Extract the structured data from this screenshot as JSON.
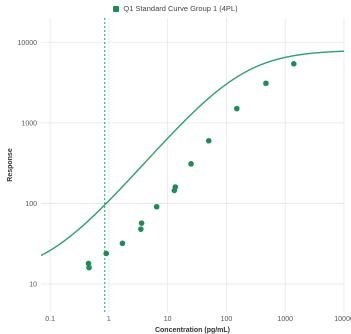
{
  "colors": {
    "series": "#2e9e6e",
    "marker": "#1f8a5a",
    "grid": "#e6e6e6",
    "cutoff": "#2e9e6e"
  },
  "chart_data": {
    "type": "scatter",
    "scale": "log-log",
    "legend_position": "top-center",
    "grid": true,
    "xlabel": "Concentration (pg/mL)",
    "ylabel": "Response",
    "xlim": [
      0.07,
      10000
    ],
    "ylim": [
      4.5,
      20000
    ],
    "x_ticks": [
      0.1,
      1,
      10,
      100,
      1000,
      10000
    ],
    "x_tick_labels": [
      "0.1",
      "1",
      "10",
      "100",
      "1000",
      "10000"
    ],
    "y_ticks": [
      10,
      100,
      1000,
      10000
    ],
    "y_tick_labels": [
      "10",
      "100",
      "1000",
      "10000"
    ],
    "vertical_reference_line_x": 0.85,
    "series": [
      {
        "name": "Q1 Standard Curve Group 1 (4PL)",
        "points": [
          {
            "x": 0.45,
            "y": 18
          },
          {
            "x": 0.46,
            "y": 16
          },
          {
            "x": 0.9,
            "y": 24
          },
          {
            "x": 1.7,
            "y": 32
          },
          {
            "x": 3.5,
            "y": 48
          },
          {
            "x": 3.6,
            "y": 57
          },
          {
            "x": 6.5,
            "y": 91
          },
          {
            "x": 13,
            "y": 145
          },
          {
            "x": 13.5,
            "y": 160
          },
          {
            "x": 25,
            "y": 310
          },
          {
            "x": 50,
            "y": 600
          },
          {
            "x": 150,
            "y": 1500
          },
          {
            "x": 470,
            "y": 3100
          },
          {
            "x": 1400,
            "y": 5400
          }
        ],
        "fit_4pl": {
          "bottom": 12.5,
          "top": 8000,
          "ec50": 180,
          "hill": 0.85
        }
      }
    ]
  }
}
